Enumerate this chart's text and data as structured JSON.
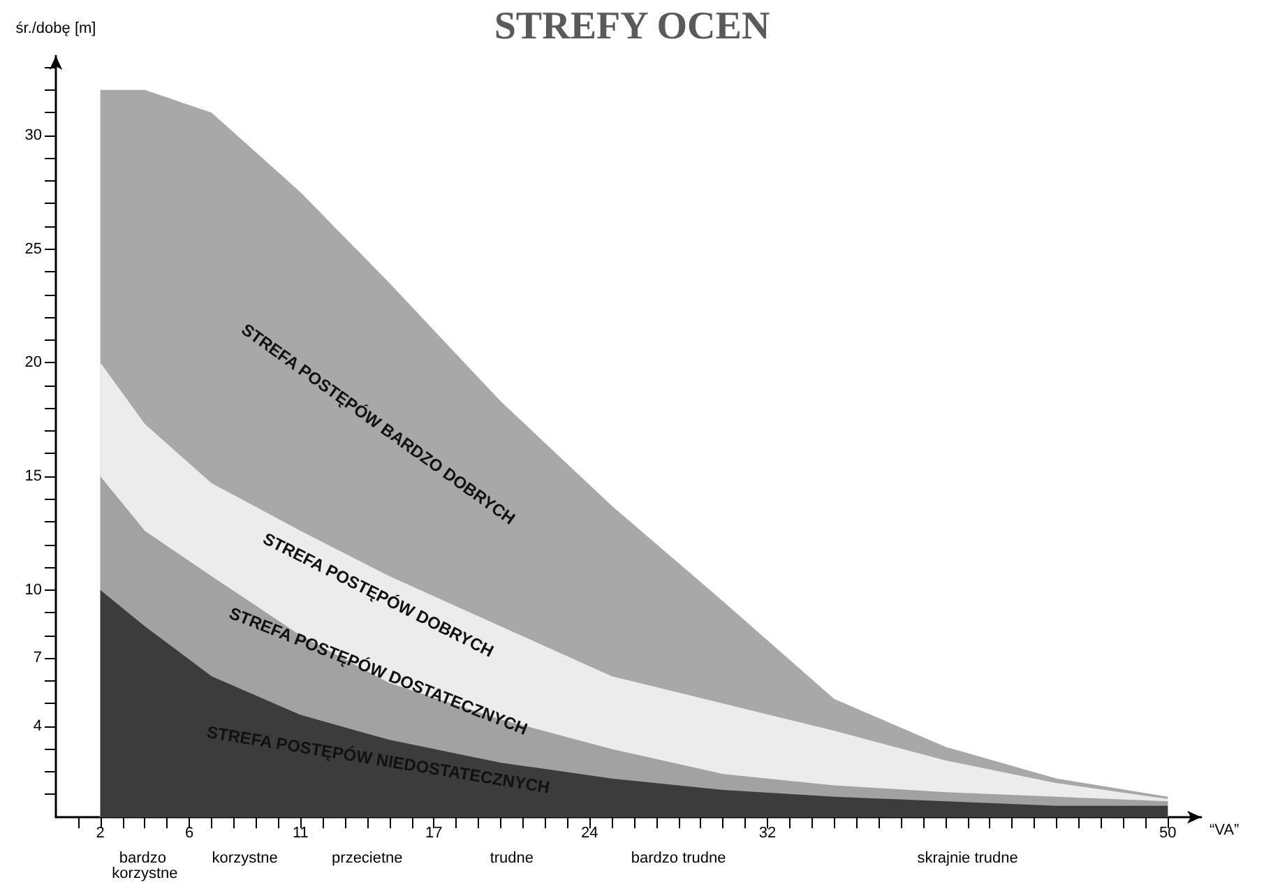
{
  "chart_data": {
    "type": "area",
    "title": "STREFY OCEN",
    "xlabel": "“VA”",
    "ylabel": "śr./dobę [m]",
    "stacked": true,
    "legend": false,
    "grid": false,
    "x": [
      2,
      4,
      7,
      11,
      15,
      20,
      25,
      30,
      35,
      40,
      45,
      50
    ],
    "series": [
      {
        "name": "STREFA POSTĘPÓW NIEDOSTATECZNYCH",
        "color": "#3c3c3c",
        "values": [
          10,
          8.4,
          6.2,
          4.5,
          3.4,
          2.4,
          1.7,
          1.2,
          0.9,
          0.7,
          0.5,
          0.5
        ]
      },
      {
        "name": "STREFA POSTĘPÓW DOSTATECZNYCH",
        "color": "#a2a2a2",
        "values": [
          5,
          4.2,
          4.4,
          3.5,
          2.5,
          1.9,
          1.3,
          0.7,
          0.5,
          0.4,
          0.4,
          0.2
        ]
      },
      {
        "name": "STREFA POSTĘPÓW DOBRYCH",
        "color": "#ececec",
        "values": [
          5,
          4.7,
          4.1,
          4.6,
          4.7,
          4.1,
          3.2,
          3.1,
          2.4,
          1.4,
          0.6,
          0.1
        ]
      },
      {
        "name": "STREFA POSTĘPÓW BARDZO DOBRYCH",
        "color": "#a8a8a8",
        "values": [
          12,
          14.7,
          16.3,
          14.9,
          12.9,
          9.9,
          7.5,
          4.5,
          1.4,
          0.6,
          0.2,
          0.1
        ]
      }
    ],
    "annotations": [
      "bardzo korzystne",
      "korzystne",
      "przecietne",
      "trudne",
      "bardzo trudne",
      "skrajnie trudne"
    ],
    "xlim": [
      0,
      51.5
    ],
    "xticks": [
      {
        "value": 1,
        "label": null
      },
      2,
      {
        "value": 3,
        "label": null
      },
      {
        "value": 4,
        "label": null
      },
      {
        "value": 5,
        "label": null
      },
      6,
      {
        "value": 7,
        "label": null
      },
      {
        "value": 8,
        "label": null
      },
      {
        "value": 9,
        "label": null
      },
      {
        "value": 10,
        "label": null
      },
      11,
      {
        "value": 12,
        "label": null
      },
      {
        "value": 13,
        "label": null
      },
      {
        "value": 14,
        "label": null
      },
      {
        "value": 15,
        "label": null
      },
      {
        "value": 16,
        "label": null
      },
      17,
      {
        "value": 18,
        "label": null
      },
      {
        "value": 19,
        "label": null
      },
      {
        "value": 20,
        "label": null
      },
      {
        "value": 21,
        "label": null
      },
      {
        "value": 22,
        "label": null
      },
      {
        "value": 23,
        "label": null
      },
      24,
      {
        "value": 25,
        "label": null
      },
      {
        "value": 26,
        "label": null
      },
      {
        "value": 27,
        "label": null
      },
      {
        "value": 28,
        "label": null
      },
      {
        "value": 29,
        "label": null
      },
      {
        "value": 30,
        "label": null
      },
      {
        "value": 31,
        "label": null
      },
      32,
      {
        "value": 33,
        "label": null
      },
      {
        "value": 34,
        "label": null
      },
      {
        "value": 35,
        "label": null
      },
      {
        "value": 36,
        "label": null
      },
      {
        "value": 37,
        "label": null
      },
      {
        "value": 38,
        "label": null
      },
      {
        "value": 39,
        "label": null
      },
      {
        "value": 40,
        "label": null
      },
      {
        "value": 41,
        "label": null
      },
      {
        "value": 42,
        "label": null
      },
      {
        "value": 43,
        "label": null
      },
      {
        "value": 44,
        "label": null
      },
      {
        "value": 45,
        "label": null
      },
      {
        "value": 46,
        "label": null
      },
      {
        "value": 47,
        "label": null
      },
      {
        "value": 48,
        "label": null
      },
      {
        "value": 49,
        "label": null
      },
      50
    ],
    "ylim": [
      0,
      33.5
    ],
    "yticks": [
      {
        "value": 1,
        "label": null
      },
      {
        "value": 2,
        "label": null
      },
      {
        "value": 3,
        "label": null
      },
      4,
      {
        "value": 5,
        "label": null
      },
      {
        "value": 6,
        "label": null
      },
      7,
      {
        "value": 8,
        "label": null
      },
      {
        "value": 9,
        "label": null
      },
      10,
      {
        "value": 11,
        "label": null
      },
      {
        "value": 12,
        "label": null
      },
      {
        "value": 13,
        "label": null
      },
      {
        "value": 14,
        "label": null
      },
      15,
      {
        "value": 16,
        "label": null
      },
      {
        "value": 17,
        "label": null
      },
      {
        "value": 18,
        "label": null
      },
      {
        "value": 19,
        "label": null
      },
      20,
      {
        "value": 21,
        "label": null
      },
      {
        "value": 22,
        "label": null
      },
      {
        "value": 23,
        "label": null
      },
      {
        "value": 24,
        "label": null
      },
      25,
      {
        "value": 26,
        "label": null
      },
      {
        "value": 27,
        "label": null
      },
      {
        "value": 28,
        "label": null
      },
      {
        "value": 29,
        "label": null
      },
      30,
      {
        "value": 31,
        "label": null
      },
      {
        "value": 32,
        "label": null
      },
      {
        "value": 33,
        "label": null
      }
    ]
  }
}
